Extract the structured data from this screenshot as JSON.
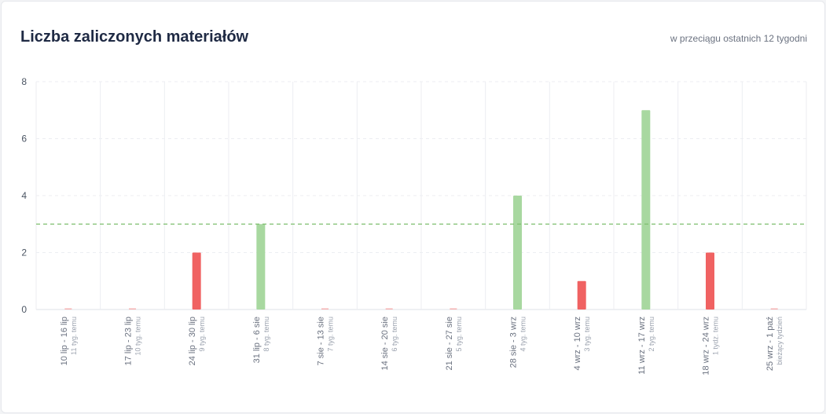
{
  "header": {
    "title": "Liczba zaliczonych materiałów",
    "subtitle": "w przeciągu ostatnich 12 tygodni"
  },
  "chart_data": {
    "type": "bar",
    "title": "Liczba zaliczonych materiałów",
    "subtitle": "w przeciągu ostatnich 12 tygodni",
    "xlabel": "",
    "ylabel": "",
    "ylim": [
      0,
      8
    ],
    "yticks": [
      0,
      2,
      4,
      6,
      8
    ],
    "grid": true,
    "categories": [
      {
        "range": "10 lip - 16 lip",
        "ago": "11 tyg. temu"
      },
      {
        "range": "17 lip - 23 lip",
        "ago": "10 tyg. temu"
      },
      {
        "range": "24 lip - 30 lip",
        "ago": "9 tyg. temu"
      },
      {
        "range": "31 lip - 6 sie",
        "ago": "8 tyg. temu"
      },
      {
        "range": "7 sie - 13 sie",
        "ago": "7 tyg. temu"
      },
      {
        "range": "14 sie - 20 sie",
        "ago": "6 tyg. temu"
      },
      {
        "range": "21 sie - 27 sie",
        "ago": "5 tyg. temu"
      },
      {
        "range": "28 sie - 3 wrz",
        "ago": "4 tyg. temu"
      },
      {
        "range": "4 wrz - 10 wrz",
        "ago": "3 tyg. temu"
      },
      {
        "range": "11 wrz - 17 wrz",
        "ago": "2 tyg. temu"
      },
      {
        "range": "18 wrz - 24 wrz",
        "ago": "1 tydz. temu"
      },
      {
        "range": "25 wrz - 1 paź",
        "ago": "bieżący tydzień"
      }
    ],
    "values": [
      0,
      0,
      2,
      3,
      0,
      0,
      0,
      4,
      1,
      7,
      2,
      0
    ],
    "target": 3,
    "colors": {
      "above_target": "#a8d8a0",
      "below_target": "#f06262",
      "target_line": "#7fbf6f",
      "grid": "#eceef2"
    }
  }
}
